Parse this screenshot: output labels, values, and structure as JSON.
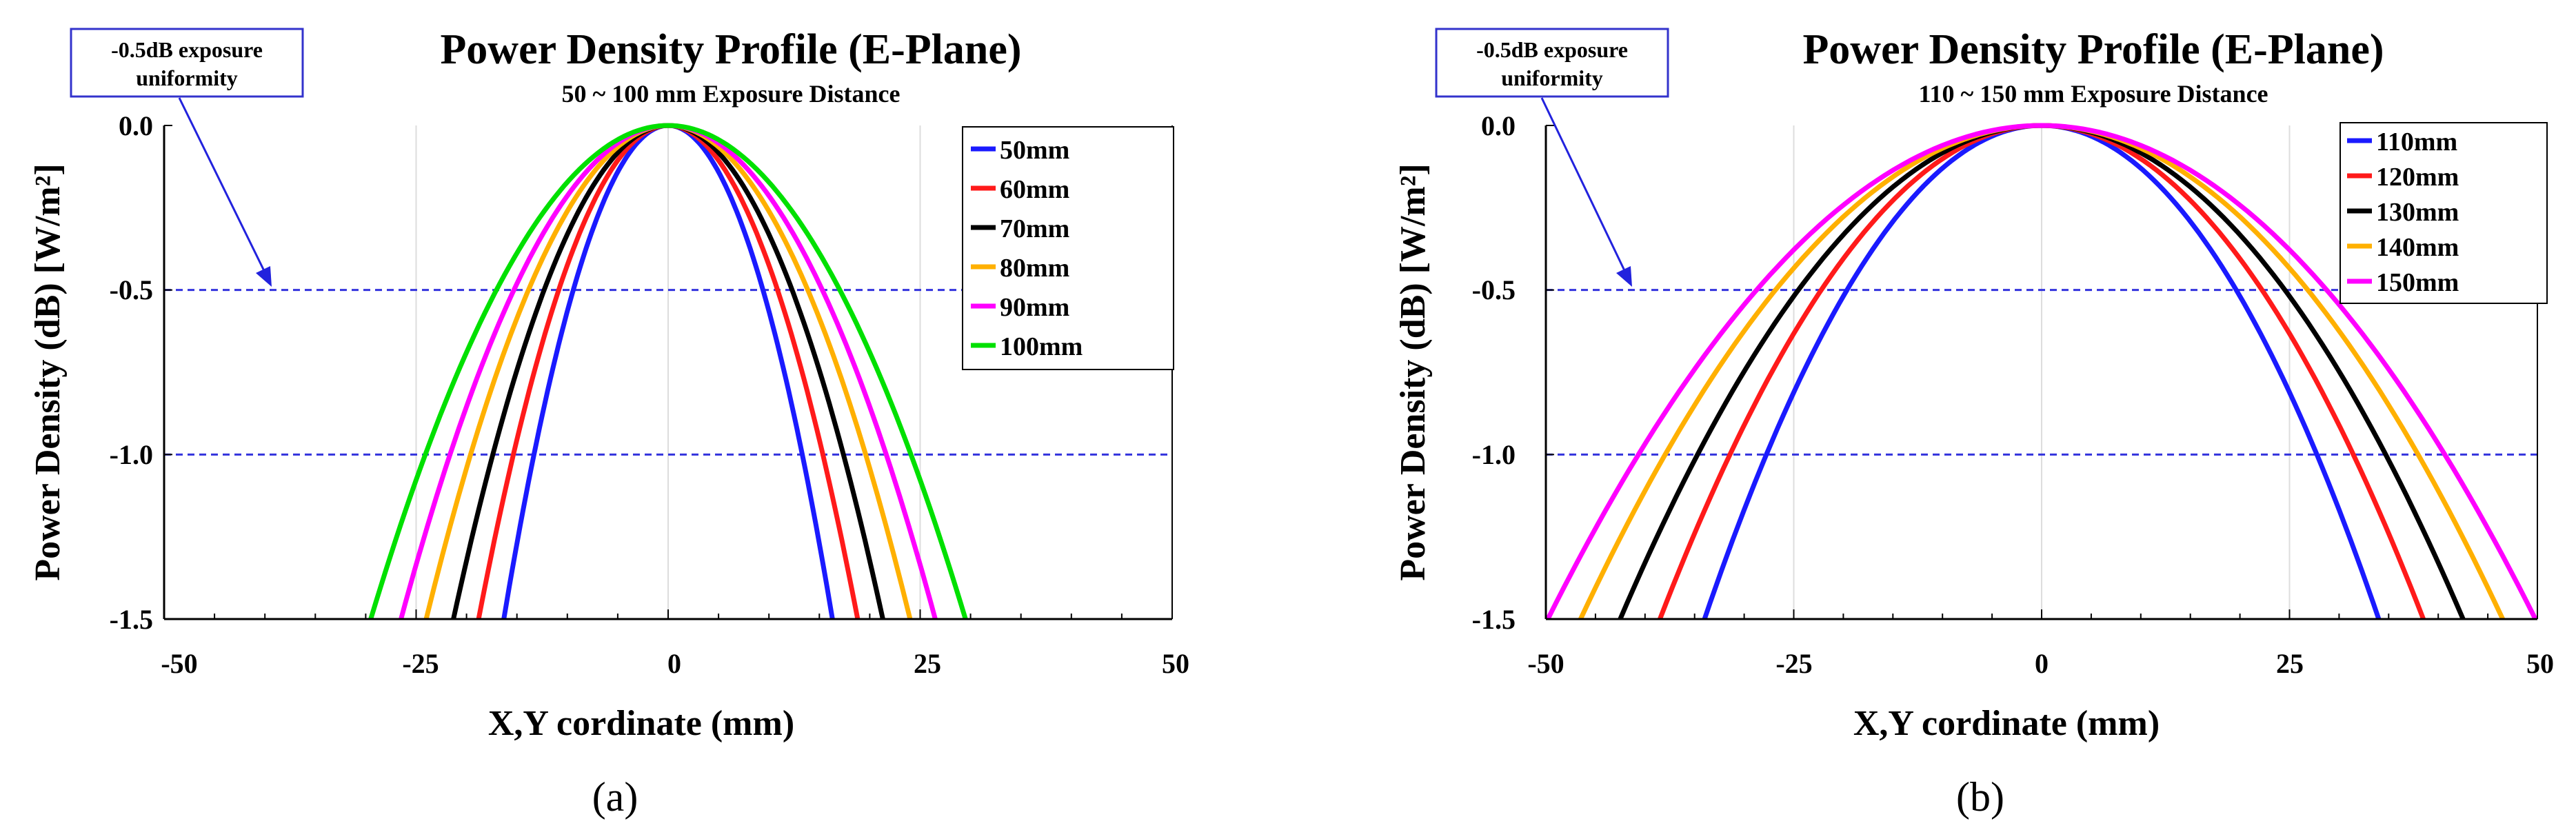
{
  "chart_data": [
    {
      "type": "line",
      "title": "Power Density Profile (E-Plane)",
      "subtitle": "50 ~ 100 mm Exposure Distance",
      "xlabel": "X,Y cordinate (mm)",
      "ylabel": "Power Density (dB) [W/m²]",
      "xlim": [
        -50,
        50
      ],
      "ylim": [
        -1.5,
        0
      ],
      "xticks": [
        "-50",
        "-25",
        "0",
        "25",
        "50"
      ],
      "yticks": [
        "0.0",
        "-0.5",
        "-1.0",
        "-1.5"
      ],
      "reference_lines": [
        -0.5,
        -1.0
      ],
      "annotation": {
        "line1": "-0.5dB exposure",
        "line2": "uniformity"
      },
      "caption": {
        "prefix": "(",
        "letter": "a",
        "suffix": ")"
      },
      "legend_position": "top-right",
      "series": [
        {
          "name": "50mm",
          "color": "#1a1aff",
          "half_width_1_5dB": 16.3,
          "peak_center": 0
        },
        {
          "name": "60mm",
          "color": "#ff1a1a",
          "half_width_1_5dB": 18.8,
          "peak_center": 0
        },
        {
          "name": "70mm",
          "color": "#000000",
          "half_width_1_5dB": 21.3,
          "peak_center": 0
        },
        {
          "name": "80mm",
          "color": "#ffb000",
          "half_width_1_5dB": 24.0,
          "peak_center": 0
        },
        {
          "name": "90mm",
          "color": "#ff00ff",
          "half_width_1_5dB": 26.5,
          "peak_center": 0
        },
        {
          "name": "100mm",
          "color": "#00e000",
          "half_width_1_5dB": 29.5,
          "peak_center": 0
        }
      ]
    },
    {
      "type": "line",
      "title": "Power Density Profile (E-Plane)",
      "subtitle": "110 ~ 150 mm Exposure Distance",
      "xlabel": "X,Y cordinate (mm)",
      "ylabel": "Power Density (dB) [W/m²]",
      "xlim": [
        -50,
        50
      ],
      "ylim": [
        -1.5,
        0
      ],
      "xticks": [
        "-50",
        "-25",
        "0",
        "25",
        "50"
      ],
      "yticks": [
        "0.0",
        "-0.5",
        "-1.0",
        "-1.5"
      ],
      "reference_lines": [
        -0.5,
        -1.0
      ],
      "annotation": {
        "line1": "-0.5dB exposure",
        "line2": "uniformity"
      },
      "caption": {
        "prefix": "(",
        "letter": "b",
        "suffix": ")"
      },
      "legend_position": "top-right",
      "series": [
        {
          "name": "110mm",
          "color": "#1a1aff",
          "half_width_1_5dB": 34.0,
          "peak_center": 0
        },
        {
          "name": "120mm",
          "color": "#ff1a1a",
          "half_width_1_5dB": 38.5,
          "peak_center": 0
        },
        {
          "name": "130mm",
          "color": "#000000",
          "half_width_1_5dB": 42.5,
          "peak_center": 0
        },
        {
          "name": "140mm",
          "color": "#ffb000",
          "half_width_1_5dB": 46.5,
          "peak_center": 0
        },
        {
          "name": "150mm",
          "color": "#ff00ff",
          "half_width_1_5dB": 49.8,
          "peak_center": 0
        }
      ]
    }
  ]
}
